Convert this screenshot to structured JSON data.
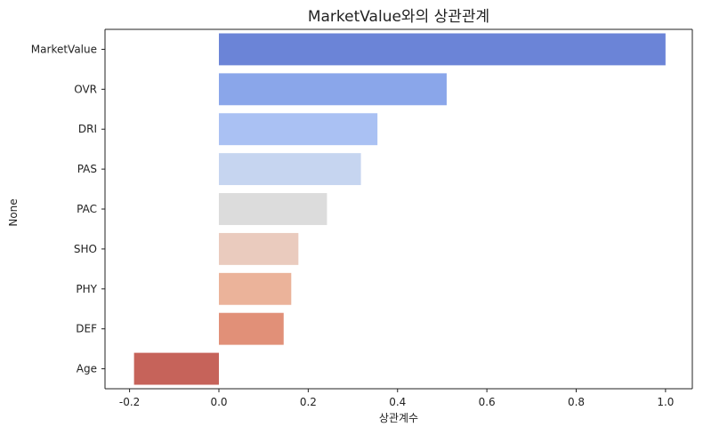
{
  "chart_data": {
    "type": "bar",
    "orientation": "horizontal",
    "title": "MarketValue와의 상관관계",
    "xlabel": "상관계수",
    "ylabel": "None",
    "categories": [
      "MarketValue",
      "OVR",
      "DRI",
      "PAS",
      "PAC",
      "SHO",
      "PHY",
      "DEF",
      "Age"
    ],
    "values": [
      1.0,
      0.51,
      0.355,
      0.318,
      0.242,
      0.178,
      0.162,
      0.145,
      -0.19
    ],
    "colors": [
      "#6b84d7",
      "#8aa6ea",
      "#aac1f3",
      "#c6d5f0",
      "#dcdcdc",
      "#eacbbe",
      "#ebb39a",
      "#e19078",
      "#c6635a"
    ],
    "xlim": [
      -0.255,
      1.06
    ],
    "xticks": [
      -0.2,
      0.0,
      0.2,
      0.4,
      0.6,
      0.8,
      1.0
    ],
    "xtick_labels": [
      "-0.2",
      "0.0",
      "0.2",
      "0.4",
      "0.6",
      "0.8",
      "1.0"
    ],
    "grid": false,
    "legend": "none"
  }
}
